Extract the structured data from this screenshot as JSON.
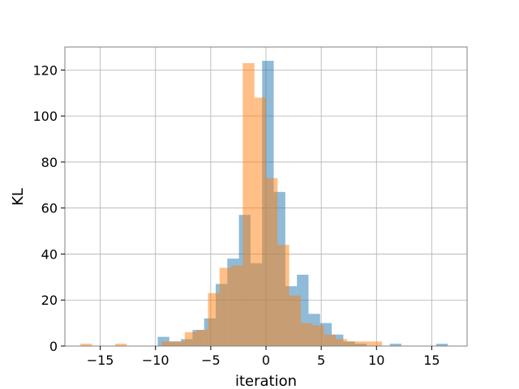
{
  "chart_data": {
    "type": "bar",
    "title": "",
    "xlabel": "iteration",
    "ylabel": "KL",
    "xlim": [
      -18.2,
      18.2
    ],
    "ylim": [
      0,
      130
    ],
    "xticks": [
      -15,
      -10,
      -5,
      0,
      5,
      10,
      15
    ],
    "yticks": [
      0,
      20,
      40,
      60,
      80,
      100,
      120
    ],
    "xtick_labels": [
      "−15",
      "−10",
      "−5",
      "0",
      "5",
      "10",
      "15"
    ],
    "ytick_labels": [
      "0",
      "20",
      "40",
      "60",
      "80",
      "100",
      "120"
    ],
    "grid": true,
    "series": [
      {
        "color": "#1f77b4",
        "opacity": 0.5,
        "bin_edges": [
          -9.8,
          -8.75,
          -7.7,
          -6.65,
          -5.6,
          -4.55,
          -3.5,
          -2.45,
          -1.4,
          -0.35,
          0.7,
          1.75,
          2.8,
          3.85,
          4.9,
          5.95,
          7.0,
          8.05,
          9.1,
          10.15,
          11.2,
          12.25,
          13.3,
          14.35,
          15.4,
          16.45
        ],
        "counts": [
          4,
          2,
          3,
          7,
          12,
          27,
          38,
          57,
          36,
          124,
          67,
          26,
          31,
          14,
          10,
          5,
          2,
          1,
          0,
          0,
          1,
          0,
          0,
          0,
          1
        ]
      },
      {
        "color": "#ff7f0e",
        "opacity": 0.5,
        "bin_edges": [
          -16.8,
          -15.75,
          -14.7,
          -13.65,
          -12.6,
          -11.55,
          -10.5,
          -9.45,
          -8.4,
          -7.35,
          -6.3,
          -5.25,
          -4.2,
          -3.15,
          -2.1,
          -1.05,
          0.0,
          1.05,
          2.1,
          3.15,
          4.2,
          5.25,
          6.3,
          7.35,
          8.4,
          9.45,
          10.5
        ],
        "counts": [
          1,
          0,
          0,
          1,
          0,
          0,
          0,
          2,
          2,
          6,
          7,
          23,
          34,
          35,
          123,
          108,
          73,
          44,
          22,
          10,
          9,
          5,
          3,
          2,
          2,
          2
        ]
      }
    ]
  }
}
